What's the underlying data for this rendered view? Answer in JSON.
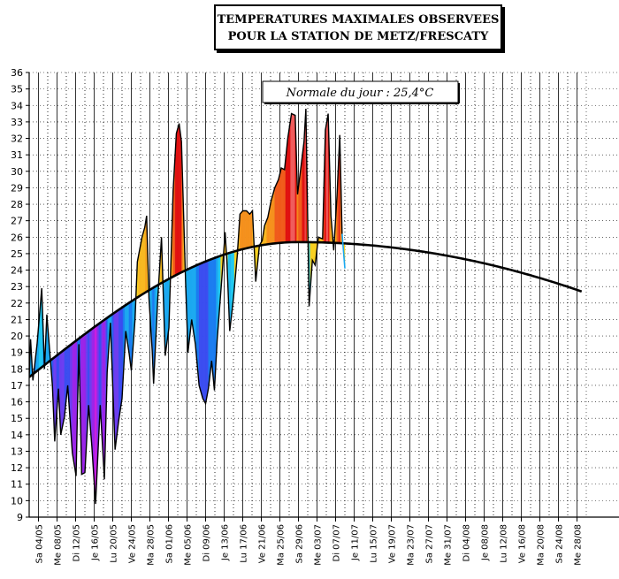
{
  "chart_data": {
    "type": "area",
    "title_line1": "TEMPERATURES MAXIMALES OBSERVEES",
    "title_line2": "POUR LA STATION DE METZ/FRESCATY",
    "annotation": "Normale du jour : 25,4°C",
    "ylim": [
      9,
      36
    ],
    "y_ticks": [
      9,
      10,
      11,
      12,
      13,
      14,
      15,
      16,
      17,
      18,
      19,
      20,
      21,
      22,
      23,
      24,
      25,
      26,
      27,
      28,
      29,
      30,
      31,
      32,
      33,
      34,
      35,
      36
    ],
    "x_tick_labels": [
      "Sa 04/05",
      "Me 08/05",
      "Di 12/05",
      "Je 16/05",
      "Lu 20/05",
      "Ve 24/05",
      "Ma 28/05",
      "Sa 01/06",
      "Me 05/06",
      "Di 09/06",
      "Je 13/06",
      "Lu 17/06",
      "Ve 21/06",
      "Ma 25/06",
      "Sa 29/06",
      "Me 03/07",
      "Di 07/07",
      "Je 11/07",
      "Lu 15/07",
      "Ve 19/07",
      "Ma 23/07",
      "Sa 27/07",
      "Me 31/07",
      "Di 04/08",
      "Je 08/08",
      "Lu 12/08",
      "Ve 16/08",
      "Ma 20/08",
      "Sa 24/08",
      "Me 28/08"
    ],
    "grid": true,
    "observed": [
      [
        0,
        17.5
      ],
      [
        0.3,
        19.8
      ],
      [
        0.8,
        17.3
      ],
      [
        1.7,
        19.5
      ],
      [
        2.7,
        22.9
      ],
      [
        3.3,
        18.0
      ],
      [
        3.8,
        21.3
      ],
      [
        5.0,
        17.0
      ],
      [
        5.5,
        13.6
      ],
      [
        6.3,
        16.8
      ],
      [
        6.8,
        14.0
      ],
      [
        7.6,
        15.1
      ],
      [
        8.3,
        17.0
      ],
      [
        9.3,
        12.9
      ],
      [
        10.1,
        11.5
      ],
      [
        10.7,
        19.5
      ],
      [
        11.3,
        11.6
      ],
      [
        12.0,
        11.7
      ],
      [
        12.8,
        15.8
      ],
      [
        13.5,
        13.3
      ],
      [
        14.3,
        9.8
      ],
      [
        15.3,
        15.8
      ],
      [
        16.2,
        11.3
      ],
      [
        16.8,
        17.8
      ],
      [
        17.5,
        20.8
      ],
      [
        18.5,
        13.1
      ],
      [
        19.3,
        14.9
      ],
      [
        20.0,
        16.2
      ],
      [
        20.8,
        20.3
      ],
      [
        21.5,
        19.0
      ],
      [
        22.0,
        17.9
      ],
      [
        22.8,
        21.0
      ],
      [
        23.3,
        24.5
      ],
      [
        24.3,
        26.0
      ],
      [
        24.9,
        26.6
      ],
      [
        25.3,
        27.3
      ],
      [
        25.8,
        22.3
      ],
      [
        26.5,
        19.1
      ],
      [
        26.8,
        17.1
      ],
      [
        27.7,
        22.3
      ],
      [
        28.5,
        26.0
      ],
      [
        29.3,
        18.8
      ],
      [
        30.1,
        20.5
      ],
      [
        31.0,
        28.8
      ],
      [
        31.7,
        32.3
      ],
      [
        32.3,
        32.9
      ],
      [
        32.8,
        31.8
      ],
      [
        33.7,
        23.2
      ],
      [
        34.2,
        19.0
      ],
      [
        35.0,
        21.0
      ],
      [
        35.8,
        19.5
      ],
      [
        36.6,
        17.0
      ],
      [
        37.4,
        16.2
      ],
      [
        38.0,
        15.9
      ],
      [
        38.6,
        16.8
      ],
      [
        39.3,
        18.5
      ],
      [
        39.9,
        16.7
      ],
      [
        40.5,
        19.8
      ],
      [
        41.5,
        23.5
      ],
      [
        42.2,
        26.3
      ],
      [
        42.6,
        24.5
      ],
      [
        43.2,
        20.3
      ],
      [
        44.0,
        22.3
      ],
      [
        44.8,
        24.8
      ],
      [
        45.4,
        27.4
      ],
      [
        46.0,
        27.6
      ],
      [
        46.8,
        27.6
      ],
      [
        47.5,
        27.4
      ],
      [
        48.1,
        27.6
      ],
      [
        48.8,
        23.3
      ],
      [
        49.6,
        25.5
      ],
      [
        50.2,
        25.8
      ],
      [
        50.7,
        26.7
      ],
      [
        51.4,
        27.2
      ],
      [
        52.1,
        28.2
      ],
      [
        52.9,
        29.0
      ],
      [
        53.7,
        29.5
      ],
      [
        54.3,
        30.2
      ],
      [
        55.0,
        30.1
      ],
      [
        55.7,
        32.0
      ],
      [
        56.5,
        33.5
      ],
      [
        57.3,
        33.4
      ],
      [
        57.8,
        28.6
      ],
      [
        58.6,
        30.4
      ],
      [
        59.2,
        31.8
      ],
      [
        59.6,
        33.8
      ],
      [
        60.3,
        21.8
      ],
      [
        61.0,
        24.6
      ],
      [
        61.6,
        24.3
      ],
      [
        62.3,
        26.0
      ],
      [
        63.2,
        25.9
      ],
      [
        63.8,
        32.5
      ],
      [
        64.4,
        33.5
      ],
      [
        65.0,
        27.3
      ],
      [
        65.6,
        25.2
      ],
      [
        66.3,
        28.5
      ],
      [
        66.9,
        32.2
      ],
      [
        67.4,
        26.2
      ],
      [
        68.0,
        24.1
      ]
    ],
    "normal_start": 17.5,
    "normal_peak": 25.7,
    "normal_peak_day": 58,
    "normal_end_day": 119,
    "normal_end": 22.7
  }
}
